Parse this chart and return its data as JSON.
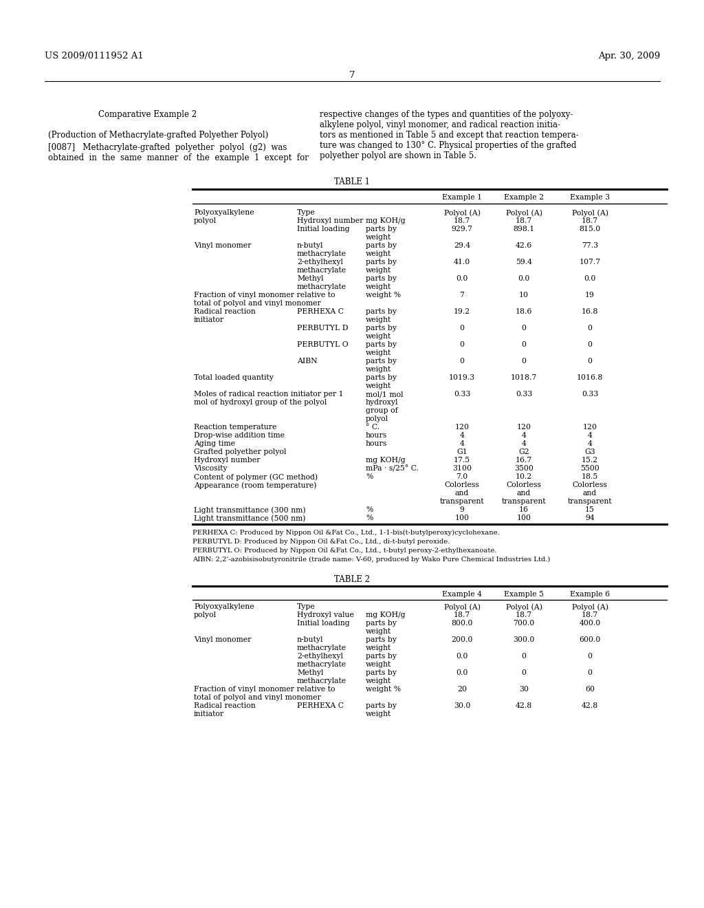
{
  "page_number": "7",
  "header_left": "US 2009/0111952 A1",
  "header_right": "Apr. 30, 2009",
  "table1_title": "TABLE 1",
  "table2_title": "TABLE 2",
  "table1_footnotes": [
    "PERHEXA C: Produced by Nippon Oil &Fat Co., Ltd., 1-1-bis(t-butylperoxy)cyclohexane.",
    "PERBUTYL D: Produced by Nippon Oil &Fat Co., Ltd., di-t-butyl peroxide.",
    "PERBUTYL O: Produced by Nippon Oil &Fat Co., Ltd., t-butyl peroxy-2-ethylhexanoate.",
    "AIBN: 2,2'-azobisisobutyronitrile (trade name: V-60, produced by Wako Pure Chemical Industries Ltd.)"
  ],
  "bg_color": "#ffffff"
}
